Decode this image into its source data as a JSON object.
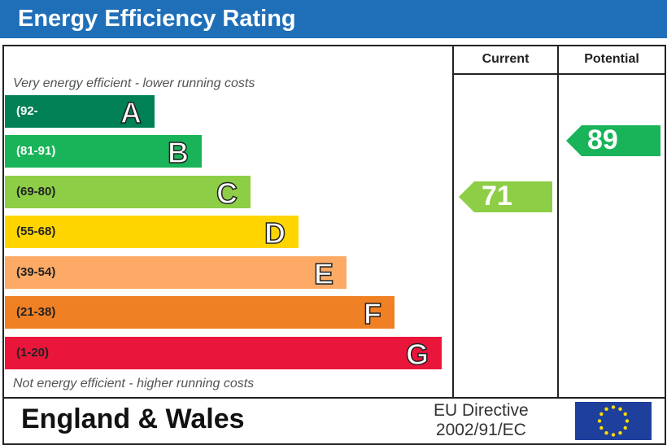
{
  "header": {
    "title": "Energy Efficiency Rating"
  },
  "columns": {
    "current": "Current",
    "potential": "Potential"
  },
  "notes": {
    "top": "Very energy efficient - lower running costs",
    "bottom": "Not energy efficient - higher running costs"
  },
  "chart_data": {
    "type": "bar",
    "categories": [
      "A",
      "B",
      "C",
      "D",
      "E",
      "F",
      "G"
    ],
    "bands": [
      {
        "letter": "A",
        "range": "(92-",
        "color": "#008054",
        "text_color": "#ffffff"
      },
      {
        "letter": "B",
        "range": "(81-91)",
        "color": "#19b459",
        "text_color": "#ffffff"
      },
      {
        "letter": "C",
        "range": "(69-80)",
        "color": "#8dce46",
        "text_color": "#222222"
      },
      {
        "letter": "D",
        "range": "(55-68)",
        "color": "#ffd500",
        "text_color": "#222222"
      },
      {
        "letter": "E",
        "range": "(39-54)",
        "color": "#fcaa65",
        "text_color": "#222222"
      },
      {
        "letter": "F",
        "range": "(21-38)",
        "color": "#ef8023",
        "text_color": "#222222"
      },
      {
        "letter": "G",
        "range": "(1-20)",
        "color": "#e9153b",
        "text_color": "#222222"
      }
    ],
    "current": {
      "value": "71",
      "band": "C",
      "color": "#8dce46"
    },
    "potential": {
      "value": "89",
      "band": "B",
      "color": "#19b459"
    }
  },
  "footer": {
    "country": "England & Wales",
    "directive_line1": "EU Directive",
    "directive_line2": "2002/91/EC",
    "flag": "eu-flag-icon"
  }
}
